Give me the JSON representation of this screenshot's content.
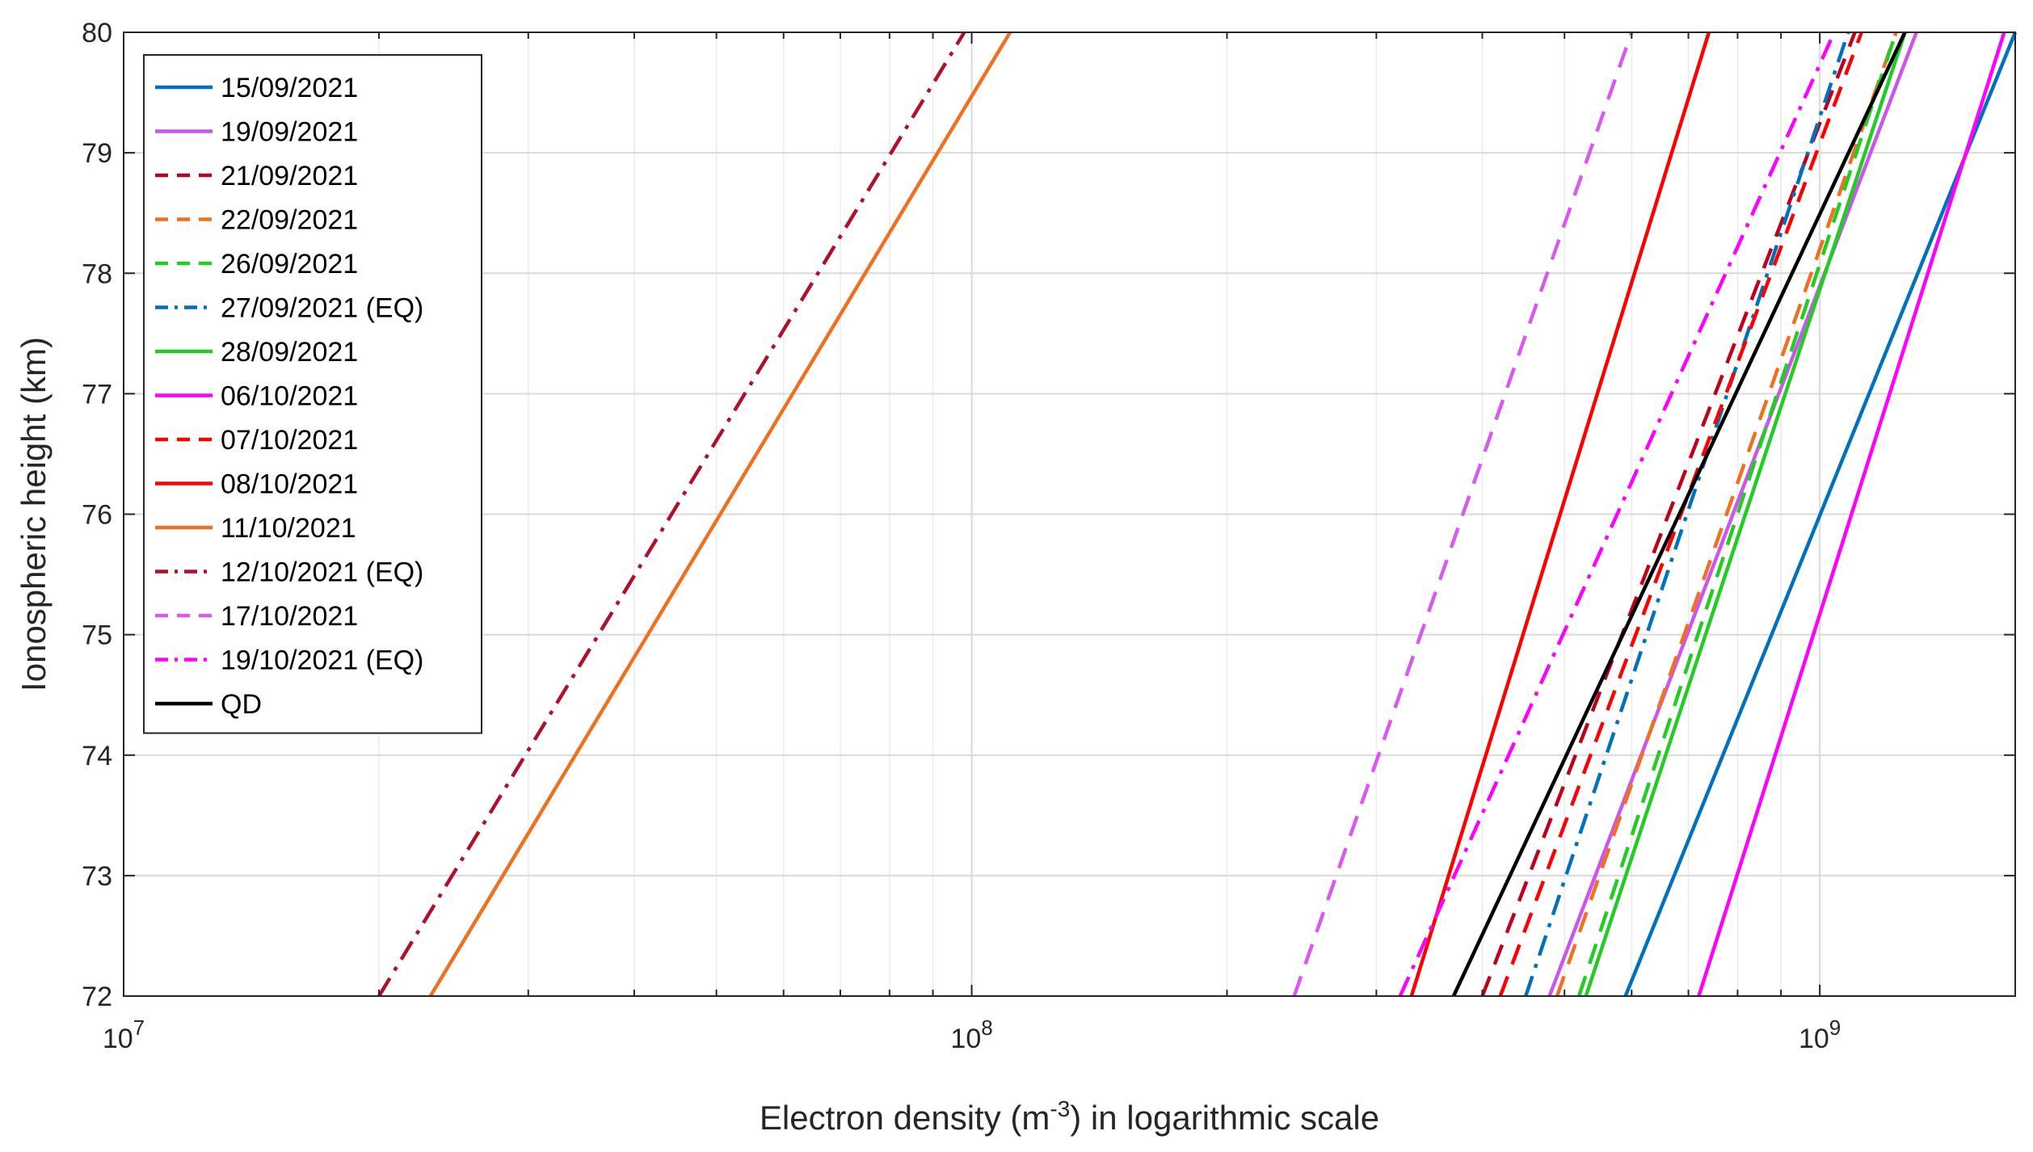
{
  "chart_data": {
    "type": "line",
    "title": "",
    "xlabel": {
      "prefix": "Electron density (m",
      "sup": "-3",
      "suffix": ") in logarithmic scale"
    },
    "ylabel": "Ionospheric height (km)",
    "xscale": "log",
    "xlim": [
      10000000,
      1700000000
    ],
    "ylim": [
      72,
      80
    ],
    "grid": true,
    "legend_location": "top-left",
    "x_ticks": [
      {
        "value": 10000000,
        "base": "10",
        "exp": "7"
      },
      {
        "value": 100000000,
        "base": "10",
        "exp": "8"
      },
      {
        "value": 1000000000,
        "base": "10",
        "exp": "9"
      }
    ],
    "y_ticks": [
      "72",
      "73",
      "74",
      "75",
      "76",
      "77",
      "78",
      "79",
      "80"
    ],
    "series": [
      {
        "name": "15/09/2021",
        "color": "#0072BD",
        "dash": "solid",
        "x": [
          590000000,
          1700000000
        ],
        "y": [
          72,
          80
        ]
      },
      {
        "name": "19/09/2021",
        "color": "#CC55EE",
        "dash": "solid",
        "x": [
          480000000,
          1300000000
        ],
        "y": [
          72,
          80
        ]
      },
      {
        "name": "21/09/2021",
        "color": "#C0001A",
        "dash": "dash",
        "x": [
          400000000,
          1100000000
        ],
        "y": [
          72,
          80
        ]
      },
      {
        "name": "22/09/2021",
        "color": "#F07020",
        "dash": "dash",
        "x": [
          490000000,
          1230000000
        ],
        "y": [
          72,
          80
        ]
      },
      {
        "name": "26/09/2021",
        "color": "#22CC22",
        "dash": "dash",
        "x": [
          520000000,
          1230000000
        ],
        "y": [
          72,
          80
        ]
      },
      {
        "name": "27/09/2021 (EQ)",
        "color": "#0072BD",
        "dash": "dashdot",
        "x": [
          450000000,
          1080000000
        ],
        "y": [
          72,
          80
        ]
      },
      {
        "name": "28/09/2021",
        "color": "#22CC22",
        "dash": "solid",
        "x": [
          530000000,
          1260000000
        ],
        "y": [
          72,
          80
        ]
      },
      {
        "name": "06/10/2021",
        "color": "#FF00FF",
        "dash": "solid",
        "x": [
          720000000,
          1650000000
        ],
        "y": [
          72,
          80
        ]
      },
      {
        "name": "07/10/2021",
        "color": "#FF0000",
        "dash": "dash",
        "x": [
          420000000,
          1120000000
        ],
        "y": [
          72,
          80
        ]
      },
      {
        "name": "08/10/2021",
        "color": "#FF0000",
        "dash": "solid",
        "x": [
          330000000,
          740000000
        ],
        "y": [
          72,
          80
        ]
      },
      {
        "name": "11/10/2021",
        "color": "#F07020",
        "dash": "solid",
        "x": [
          23000000,
          111000000
        ],
        "y": [
          72,
          80
        ]
      },
      {
        "name": "12/10/2021 (EQ)",
        "color": "#B0102A",
        "dash": "dashdot",
        "x": [
          20000000,
          98000000
        ],
        "y": [
          72,
          80
        ]
      },
      {
        "name": "17/10/2021",
        "color": "#D858F0",
        "dash": "dash",
        "x": [
          240000000,
          600000000
        ],
        "y": [
          72,
          80
        ]
      },
      {
        "name": "19/10/2021 (EQ)",
        "color": "#FF00FF",
        "dash": "dashdot",
        "x": [
          320000000,
          1040000000
        ],
        "y": [
          72,
          80
        ]
      },
      {
        "name": "QD",
        "color": "#000000",
        "dash": "solid",
        "x": [
          370000000,
          1260000000
        ],
        "y": [
          72,
          80
        ]
      }
    ]
  }
}
